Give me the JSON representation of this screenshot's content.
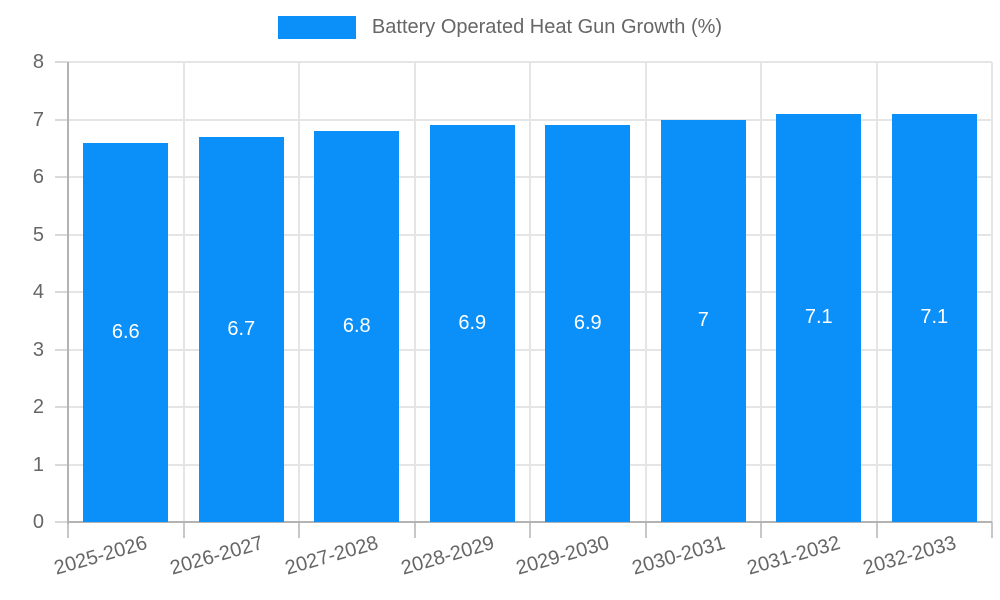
{
  "legend": {
    "label": "Battery Operated Heat Gun Growth (%)",
    "swatch_color": "#0b8ff8"
  },
  "chart_data": {
    "type": "bar",
    "title": "Battery Operated Heat Gun Growth (%)",
    "categories": [
      "2025-2026",
      "2026-2027",
      "2027-2028",
      "2028-2029",
      "2029-2030",
      "2030-2031",
      "2031-2032",
      "2032-2033"
    ],
    "values": [
      6.6,
      6.7,
      6.8,
      6.9,
      6.9,
      7,
      7.1,
      7.1
    ],
    "value_labels": [
      "6.6",
      "6.7",
      "6.8",
      "6.9",
      "6.9",
      "7",
      "7.1",
      "7.1"
    ],
    "xlabel": "",
    "ylabel": "",
    "ylim": [
      0,
      8
    ],
    "y_ticks": [
      0,
      1,
      2,
      3,
      4,
      5,
      6,
      7,
      8
    ],
    "grid": true,
    "legend_position": "top",
    "bar_color": "#0b8ff8",
    "value_label_color": "#ffffff",
    "tick_label_color": "#666666",
    "grid_color": "#e5e5e5",
    "axis_color": "#b3b3b3"
  }
}
